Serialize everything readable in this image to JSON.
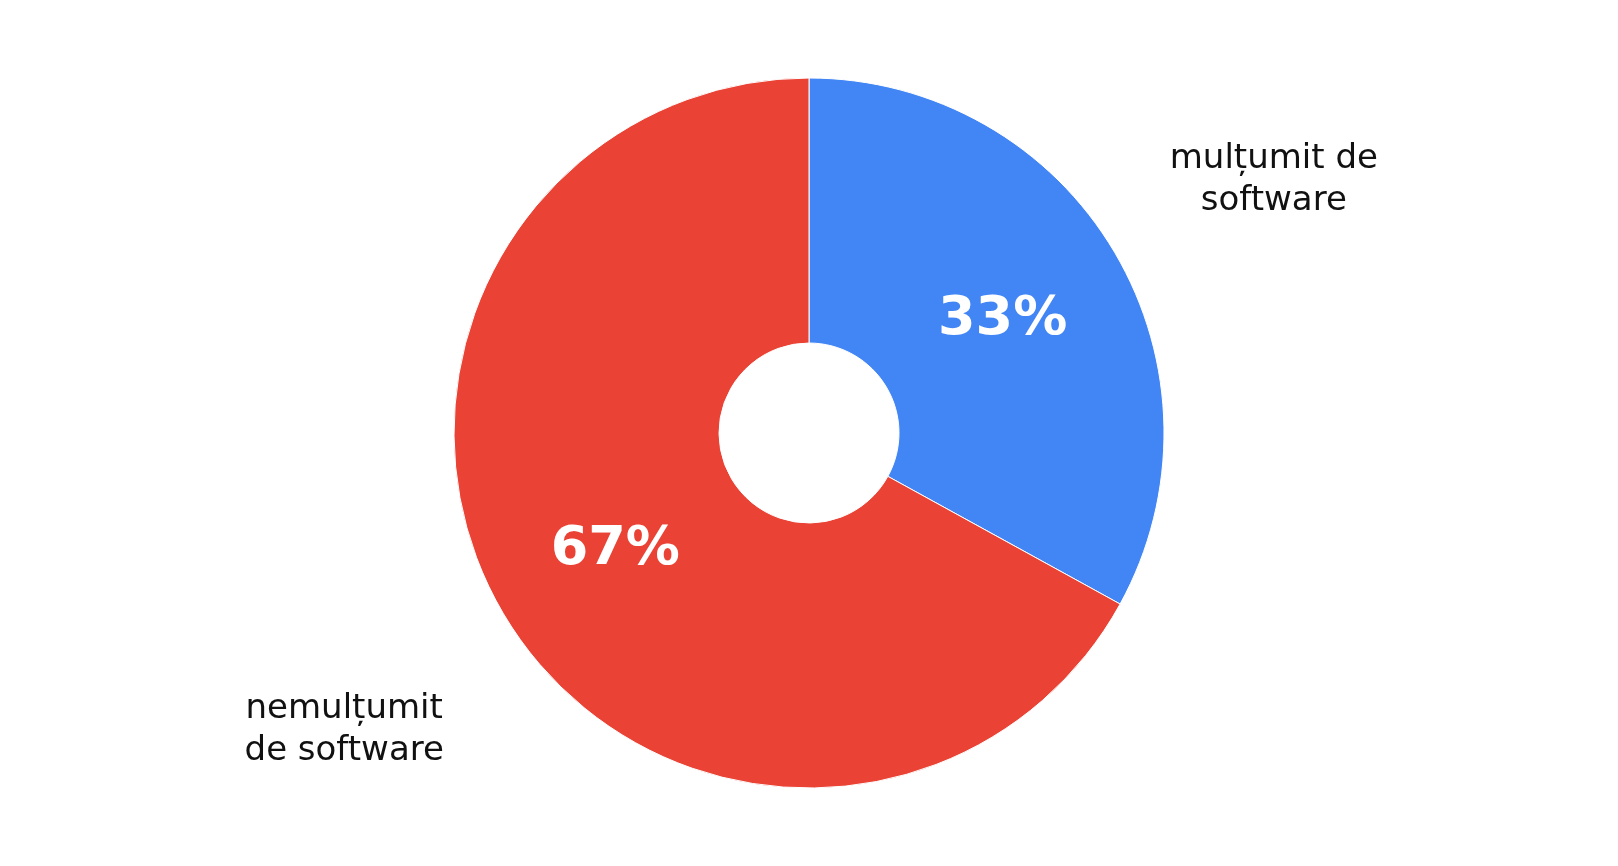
{
  "chart_data": {
    "type": "donut",
    "categories": [
      "mulțumit de software",
      "nemulțumit de software"
    ],
    "values": [
      33,
      67
    ],
    "colors": [
      "#4285f4",
      "#ea4335"
    ],
    "value_labels": [
      "33%",
      "67%"
    ],
    "legend": false
  }
}
